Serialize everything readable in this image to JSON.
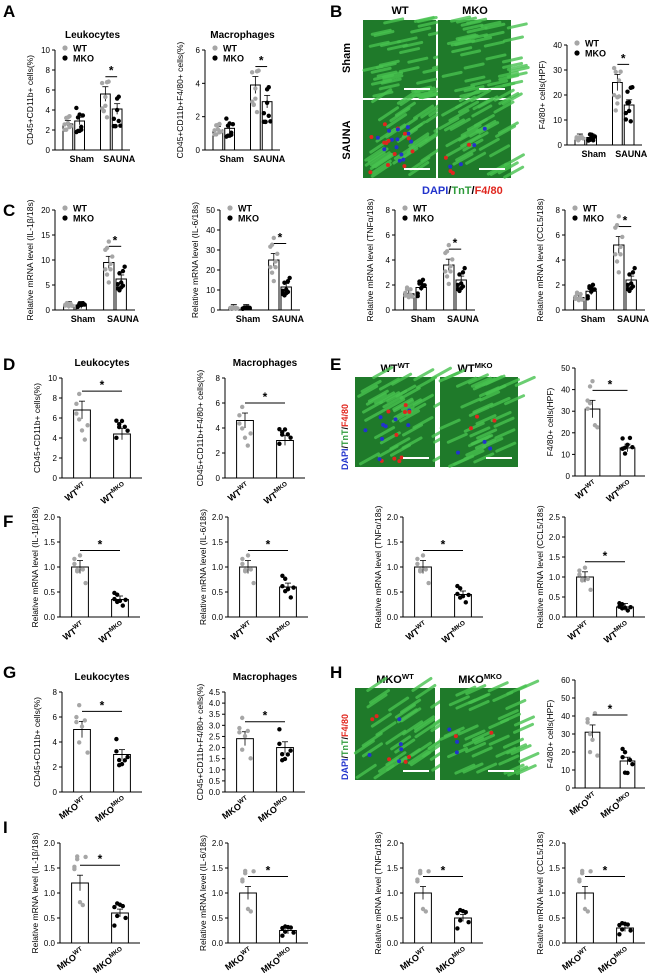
{
  "panel_letters": [
    "A",
    "B",
    "C",
    "D",
    "E",
    "F",
    "G",
    "H",
    "I"
  ],
  "colors": {
    "wt": "#a6a6a6",
    "mko": "#000000",
    "tissue": "#2e9a3a",
    "dapi": "#2233cc",
    "f480": "#e0261e",
    "tnt": "#2e9a3a"
  },
  "micro": {
    "B": {
      "cols": [
        "WT",
        "MKO"
      ],
      "rows": [
        "Sham",
        "SAUNA"
      ],
      "legend": [
        "DAPI",
        "/",
        "TnT",
        "/",
        "F4/80"
      ],
      "scale": "100μm"
    },
    "E": {
      "cols": [
        "WT",
        "WT"
      ],
      "col_sup": [
        "WT",
        "MKO"
      ],
      "ylabel": [
        "DAPI",
        "/",
        "TnT",
        "/",
        "F4/80"
      ],
      "scale": "100μm"
    },
    "H": {
      "cols": [
        "MKO",
        "MKO"
      ],
      "col_sup": [
        "WT",
        "MKO"
      ],
      "ylabel": [
        "DAPI",
        "/",
        "TnT",
        "/",
        "F4/80"
      ],
      "scale": "100μm"
    }
  },
  "chart_data": [
    {
      "id": "A1",
      "type": "bar",
      "title": "Leukocytes",
      "ylabel": "CD45+CD11b+ cells(%)",
      "ylim": [
        0,
        10
      ],
      "yticks": [
        0,
        2,
        4,
        6,
        8,
        10
      ],
      "legend": [
        "WT",
        "MKO"
      ],
      "categories": [
        "Sham",
        "SAUNA"
      ],
      "series": [
        {
          "name": "WT",
          "values": [
            2.6,
            5.6
          ]
        },
        {
          "name": "MKO",
          "values": [
            2.9,
            4.1
          ]
        }
      ],
      "annotation": "*"
    },
    {
      "id": "A2",
      "type": "bar",
      "title": "Macrophages",
      "ylabel": "CD45+CD11b+F4/80+ cells(%)",
      "ylim": [
        0,
        6
      ],
      "yticks": [
        0,
        2,
        4,
        6
      ],
      "legend": [
        "WT",
        "MKO"
      ],
      "categories": [
        "Sham",
        "SAUNA"
      ],
      "series": [
        {
          "name": "WT",
          "values": [
            1.2,
            3.9
          ]
        },
        {
          "name": "MKO",
          "values": [
            1.3,
            2.9
          ]
        }
      ],
      "annotation": "*"
    },
    {
      "id": "B1",
      "type": "bar",
      "title": "",
      "ylabel": "F4/80+ cells(HPF)",
      "ylim": [
        0,
        40
      ],
      "yticks": [
        0,
        10,
        20,
        30,
        40
      ],
      "legend": [
        "WT",
        "MKO"
      ],
      "categories": [
        "Sham",
        "SAUNA"
      ],
      "series": [
        {
          "name": "WT",
          "values": [
            3,
            25
          ]
        },
        {
          "name": "MKO",
          "values": [
            3,
            16
          ]
        }
      ],
      "annotation": "*"
    },
    {
      "id": "C1",
      "type": "bar",
      "title": "",
      "ylabel": "Relative mRNA level (IL-1β/18s)",
      "ylim": [
        0,
        20
      ],
      "yticks": [
        0,
        5,
        10,
        15,
        20
      ],
      "legend": [
        "WT",
        "MKO"
      ],
      "categories": [
        "Sham",
        "SAUNA"
      ],
      "series": [
        {
          "name": "WT",
          "values": [
            1,
            9.5
          ]
        },
        {
          "name": "MKO",
          "values": [
            1,
            6.2
          ]
        }
      ],
      "annotation": "*"
    },
    {
      "id": "C2",
      "type": "bar",
      "title": "",
      "ylabel": "Relative mRNA level (IL-6/18s)",
      "ylim": [
        0,
        50
      ],
      "yticks": [
        0,
        10,
        20,
        30,
        40,
        50
      ],
      "legend": [
        "WT",
        "MKO"
      ],
      "categories": [
        "Sham",
        "SAUNA"
      ],
      "series": [
        {
          "name": "WT",
          "values": [
            1,
            25
          ]
        },
        {
          "name": "MKO",
          "values": [
            1,
            11.5
          ]
        }
      ],
      "annotation": "*"
    },
    {
      "id": "C3",
      "type": "bar",
      "title": "",
      "ylabel": "Relative mRNA level (TNFα/18s)",
      "ylim": [
        0,
        8
      ],
      "yticks": [
        0,
        2,
        4,
        6,
        8
      ],
      "legend": [
        "WT",
        "MKO"
      ],
      "categories": [
        "Sham",
        "SAUNA"
      ],
      "series": [
        {
          "name": "WT",
          "values": [
            1.3,
            3.6
          ]
        },
        {
          "name": "MKO",
          "values": [
            1.8,
            2.4
          ]
        }
      ],
      "annotation": "*"
    },
    {
      "id": "C4",
      "type": "bar",
      "title": "",
      "ylabel": "Relative mRNA level (CCL5/18s)",
      "ylim": [
        0,
        8
      ],
      "yticks": [
        0,
        2,
        4,
        6,
        8
      ],
      "legend": [
        "WT",
        "MKO"
      ],
      "categories": [
        "Sham",
        "SAUNA"
      ],
      "series": [
        {
          "name": "WT",
          "values": [
            1,
            5.2
          ]
        },
        {
          "name": "MKO",
          "values": [
            1.5,
            2.4
          ]
        }
      ],
      "annotation": "*"
    },
    {
      "id": "D1",
      "type": "bar",
      "title": "Leukocytes",
      "ylabel": "CD45+CD11b+ cells(%)",
      "ylim": [
        0,
        10
      ],
      "yticks": [
        0,
        2,
        4,
        6,
        8,
        10
      ],
      "categories": [
        "WT^WT",
        "WT^MKO"
      ],
      "values": [
        6.8,
        4.4
      ],
      "annotation": "*"
    },
    {
      "id": "D2",
      "type": "bar",
      "title": "Macrophages",
      "ylabel": "CD45+CD11b+F4/80+ cells(%)",
      "ylim": [
        0,
        8
      ],
      "yticks": [
        0,
        2,
        4,
        6,
        8
      ],
      "categories": [
        "WT^WT",
        "WT^MKO"
      ],
      "values": [
        4.6,
        3.0
      ],
      "annotation": "*"
    },
    {
      "id": "E1",
      "type": "bar",
      "title": "",
      "ylabel": "F4/80+ cells(HPF)",
      "ylim": [
        0,
        50
      ],
      "yticks": [
        0,
        10,
        20,
        30,
        40,
        50
      ],
      "categories": [
        "WT^WT",
        "WT^MKO"
      ],
      "values": [
        31,
        13
      ],
      "annotation": "*"
    },
    {
      "id": "F1",
      "type": "bar",
      "title": "",
      "ylabel": "Relative mRNA level (IL-1β/18s)",
      "ylim": [
        0,
        2.0
      ],
      "yticks": [
        0,
        0.5,
        1.0,
        1.5,
        2.0
      ],
      "categories": [
        "WT^WT",
        "WT^MKO"
      ],
      "values": [
        1.0,
        0.35
      ],
      "annotation": "*"
    },
    {
      "id": "F2",
      "type": "bar",
      "title": "",
      "ylabel": "Relative mRNA level (IL-6/18s)",
      "ylim": [
        0,
        2.0
      ],
      "yticks": [
        0,
        0.5,
        1.0,
        1.5,
        2.0
      ],
      "categories": [
        "WT^WT",
        "WT^MKO"
      ],
      "values": [
        1.0,
        0.6
      ],
      "annotation": "*"
    },
    {
      "id": "F3",
      "type": "bar",
      "title": "",
      "ylabel": "Relative mRNA level (TNFα/18s)",
      "ylim": [
        0,
        2.0
      ],
      "yticks": [
        0,
        0.5,
        1.0,
        1.5,
        2.0
      ],
      "categories": [
        "WT^WT",
        "WT^MKO"
      ],
      "values": [
        1.0,
        0.45
      ],
      "annotation": "*"
    },
    {
      "id": "F4",
      "type": "bar",
      "title": "",
      "ylabel": "Relative mRNA level (CCL5/18s)",
      "ylim": [
        0,
        2.5
      ],
      "yticks": [
        0,
        0.5,
        1.0,
        1.5,
        2.0,
        2.5
      ],
      "categories": [
        "WT^WT",
        "WT^MKO"
      ],
      "values": [
        1.0,
        0.25
      ],
      "annotation": "*"
    },
    {
      "id": "G1",
      "type": "bar",
      "title": "Leukocytes",
      "ylabel": "CD45+CD11b+ cells(%)",
      "ylim": [
        0,
        8
      ],
      "yticks": [
        0,
        2,
        4,
        6,
        8
      ],
      "categories": [
        "MKO^WT",
        "MKO^MKO"
      ],
      "values": [
        5.0,
        3.0
      ],
      "annotation": "*"
    },
    {
      "id": "G2",
      "type": "bar",
      "title": "Macrophages",
      "ylabel": "CD45+CD11b+F4/80+ cells(%)",
      "ylim": [
        0,
        4.5
      ],
      "yticks": [
        0,
        0.5,
        1.0,
        1.5,
        2.0,
        2.5,
        3.0,
        3.5,
        4.0,
        4.5
      ],
      "categories": [
        "MKO^WT",
        "MKO^MKO"
      ],
      "values": [
        2.4,
        2.0
      ],
      "annotation": "*"
    },
    {
      "id": "H1",
      "type": "bar",
      "title": "",
      "ylabel": "F4/80+ cells(HPF)",
      "ylim": [
        0,
        60
      ],
      "yticks": [
        0,
        10,
        20,
        30,
        40,
        50,
        60
      ],
      "categories": [
        "MKO^WT",
        "MKO^MKO"
      ],
      "values": [
        31,
        15
      ],
      "annotation": "*"
    },
    {
      "id": "I1",
      "type": "bar",
      "title": "",
      "ylabel": "Relative mRNA level (IL-1β/18s)",
      "ylim": [
        0,
        2.0
      ],
      "yticks": [
        0,
        0.5,
        1.0,
        1.5,
        2.0
      ],
      "categories": [
        "MKO^WT",
        "MKO^MKO"
      ],
      "values": [
        1.2,
        0.6
      ],
      "annotation": "*"
    },
    {
      "id": "I2",
      "type": "bar",
      "title": "",
      "ylabel": "Relative mRNA level (IL-6/18s)",
      "ylim": [
        0,
        2.0
      ],
      "yticks": [
        0,
        0.5,
        1.0,
        1.5,
        2.0
      ],
      "categories": [
        "MKO^WT",
        "MKO^MKO"
      ],
      "values": [
        1.0,
        0.25
      ],
      "annotation": "*"
    },
    {
      "id": "I3",
      "type": "bar",
      "title": "",
      "ylabel": "Relative mRNA level (TNFα/18s)",
      "ylim": [
        0,
        2.0
      ],
      "yticks": [
        0,
        0.5,
        1.0,
        1.5,
        2.0
      ],
      "categories": [
        "MKO^WT",
        "MKO^MKO"
      ],
      "values": [
        1.0,
        0.5
      ],
      "annotation": "*"
    },
    {
      "id": "I4",
      "type": "bar",
      "title": "",
      "ylabel": "Relative mRNA level (CCL5/18s)",
      "ylim": [
        0,
        2.0
      ],
      "yticks": [
        0,
        0.5,
        1.0,
        1.5,
        2.0
      ],
      "categories": [
        "MKO^WT",
        "MKO^MKO"
      ],
      "values": [
        1.0,
        0.3
      ],
      "annotation": "*"
    }
  ]
}
